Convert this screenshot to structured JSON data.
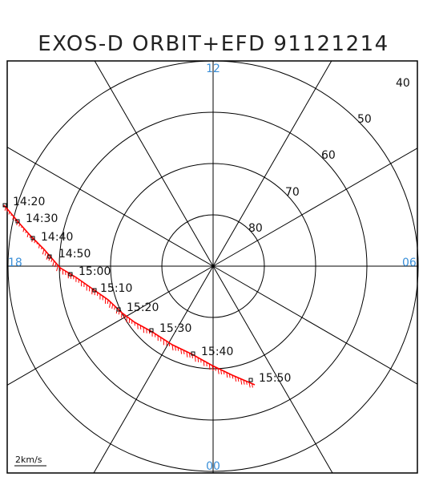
{
  "title": "EXOS-D ORBIT+EFD 91121214",
  "latitude_labels": [
    "40",
    "50",
    "60",
    "70",
    "80"
  ],
  "mlt_labels": {
    "top": "12",
    "left": "18",
    "right": "06",
    "bottom": "00"
  },
  "time_labels": [
    "14:20",
    "14:30",
    "14:40",
    "14:50",
    "15:00",
    "15:10",
    "15:20",
    "15:30",
    "15:40",
    "15:50"
  ],
  "scale_label": "2km/s",
  "colors": {
    "orbit": "#ff0000",
    "mlt_label": "#3a8fd8",
    "grid": "#000000"
  }
}
